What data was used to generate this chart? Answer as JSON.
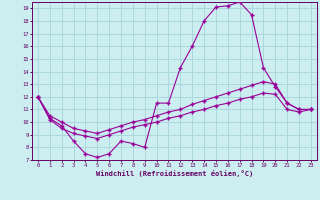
{
  "xlabel": "Windchill (Refroidissement éolien,°C)",
  "bg_color": "#cceef0",
  "grid_color": "#aad8dc",
  "line_color": "#990099",
  "xlim": [
    -0.5,
    23.5
  ],
  "ylim": [
    7,
    19.5
  ],
  "xticks": [
    0,
    1,
    2,
    3,
    4,
    5,
    6,
    7,
    8,
    9,
    10,
    11,
    12,
    13,
    14,
    15,
    16,
    17,
    18,
    19,
    20,
    21,
    22,
    23
  ],
  "yticks": [
    7,
    8,
    9,
    10,
    11,
    12,
    13,
    14,
    15,
    16,
    17,
    18,
    19
  ],
  "line1_x": [
    0,
    1,
    2,
    3,
    4,
    5,
    6,
    7,
    8,
    9,
    10,
    11,
    12,
    13,
    14,
    15,
    16,
    17,
    18,
    19,
    20,
    21,
    22,
    23
  ],
  "line1_y": [
    12.0,
    10.3,
    9.7,
    8.5,
    7.5,
    7.2,
    7.5,
    8.5,
    8.3,
    8.0,
    11.5,
    11.5,
    14.3,
    16.0,
    18.0,
    19.1,
    19.2,
    19.5,
    18.5,
    14.3,
    12.8,
    11.5,
    11.0,
    11.0
  ],
  "line2_x": [
    0,
    1,
    2,
    3,
    4,
    5,
    6,
    7,
    8,
    9,
    10,
    11,
    12,
    13,
    14,
    15,
    16,
    17,
    18,
    19,
    20,
    21,
    22,
    23
  ],
  "line2_y": [
    12.0,
    10.5,
    10.0,
    9.5,
    9.3,
    9.1,
    9.4,
    9.7,
    10.0,
    10.2,
    10.5,
    10.8,
    11.0,
    11.4,
    11.7,
    12.0,
    12.3,
    12.6,
    12.9,
    13.2,
    13.0,
    11.5,
    11.0,
    11.0
  ],
  "line3_x": [
    0,
    1,
    2,
    3,
    4,
    5,
    6,
    7,
    8,
    9,
    10,
    11,
    12,
    13,
    14,
    15,
    16,
    17,
    18,
    19,
    20,
    21,
    22,
    23
  ],
  "line3_y": [
    12.0,
    10.2,
    9.5,
    9.1,
    8.9,
    8.7,
    9.0,
    9.3,
    9.6,
    9.8,
    10.0,
    10.3,
    10.5,
    10.8,
    11.0,
    11.3,
    11.5,
    11.8,
    12.0,
    12.3,
    12.2,
    11.0,
    10.8,
    11.0
  ]
}
